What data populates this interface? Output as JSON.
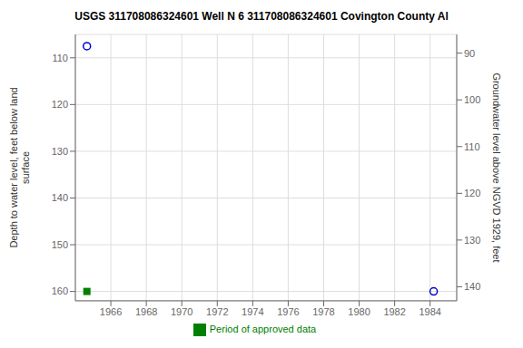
{
  "chart_data": {
    "type": "scatter",
    "title": "USGS 311708086324601 Well  N 6  311708086324601 Covington County Al",
    "ylabel": "Depth to water level, feet below land\n surface",
    "y2label": "Groundwater level above NGVD 1929, feet",
    "xlim": [
      1964.0,
      1985.5
    ],
    "xticks": [
      1966,
      1968,
      1970,
      1972,
      1974,
      1976,
      1978,
      1980,
      1982,
      1984
    ],
    "ylim": [
      162,
      105
    ],
    "yticks": [
      110,
      120,
      130,
      140,
      150,
      160
    ],
    "y2lim": [
      143,
      86
    ],
    "y2ticks": [
      140,
      130,
      120,
      110,
      100,
      90
    ],
    "grid": true,
    "legend": "bottom",
    "series": [
      {
        "color": "#0000cc",
        "marker": "open_circle",
        "x": [
          1964.65,
          1984.2
        ],
        "values": [
          107.5,
          160.0
        ]
      },
      {
        "name": "Period of approved data",
        "color": "#008000",
        "marker": "square",
        "x": [
          1964.65
        ],
        "values": [
          160.0
        ]
      }
    ]
  }
}
